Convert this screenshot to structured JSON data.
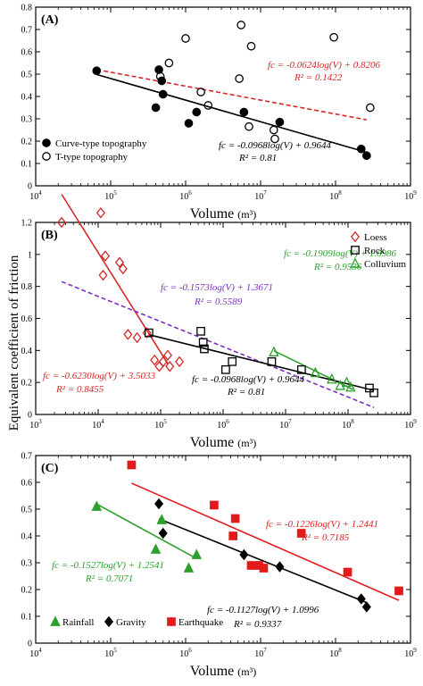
{
  "figure": {
    "ylabel": "Equivalent coefficient of friction",
    "xlabel_prefix": "Volume",
    "xlabel_unit": "(m³)"
  },
  "chart_data": [
    {
      "panel": "(A)",
      "type": "scatter",
      "x_scale": "log",
      "x_exp_range": [
        4,
        9
      ],
      "ylim": [
        0,
        0.8
      ],
      "y_ticks": [
        0,
        0.1,
        0.2,
        0.3,
        0.4,
        0.5,
        0.6,
        0.7,
        0.8
      ],
      "legend_position": "bottom-left",
      "series": [
        {
          "name": "Curve-type topography",
          "marker": "filled-circle",
          "color": "#000000",
          "points": [
            {
              "x": 65000,
              "y": 0.515
            },
            {
              "x": 400000,
              "y": 0.35
            },
            {
              "x": 440000,
              "y": 0.52
            },
            {
              "x": 480000,
              "y": 0.47
            },
            {
              "x": 500000,
              "y": 0.41
            },
            {
              "x": 1100000,
              "y": 0.28
            },
            {
              "x": 1400000,
              "y": 0.33
            },
            {
              "x": 6000000,
              "y": 0.33
            },
            {
              "x": 18000000,
              "y": 0.285
            },
            {
              "x": 220000000,
              "y": 0.165
            },
            {
              "x": 260000000,
              "y": 0.135
            }
          ]
        },
        {
          "name": "T-type topography",
          "marker": "open-circle",
          "color": "#000000",
          "points": [
            {
              "x": 460000,
              "y": 0.49
            },
            {
              "x": 600000,
              "y": 0.55
            },
            {
              "x": 1000000,
              "y": 0.66
            },
            {
              "x": 1600000,
              "y": 0.42
            },
            {
              "x": 2000000,
              "y": 0.36
            },
            {
              "x": 5200000,
              "y": 0.48
            },
            {
              "x": 5500000,
              "y": 0.72
            },
            {
              "x": 7500000,
              "y": 0.625
            },
            {
              "x": 7000000,
              "y": 0.265
            },
            {
              "x": 15000000,
              "y": 0.25
            },
            {
              "x": 15500000,
              "y": 0.21
            },
            {
              "x": 95000000,
              "y": 0.665
            },
            {
              "x": 290000000,
              "y": 0.35
            }
          ]
        }
      ],
      "fits": [
        {
          "label": "fc = -0.0624log(V) + 0.8206",
          "r2": "R² = 0.1422",
          "slope": -0.0624,
          "intercept": 0.8206,
          "x_from": 65000,
          "x_to": 260000000,
          "style": "dashed",
          "color": "#d62728"
        },
        {
          "label": "fc = -0.0968log(V) + 0.9644",
          "r2": "R² = 0.81",
          "slope": -0.0968,
          "intercept": 0.9644,
          "x_from": 65000,
          "x_to": 260000000,
          "style": "solid",
          "color": "#000000"
        }
      ]
    },
    {
      "panel": "(B)",
      "type": "scatter",
      "x_scale": "log",
      "x_exp_range": [
        3,
        9
      ],
      "ylim": [
        0,
        1.2
      ],
      "y_ticks": [
        0,
        0.2,
        0.4,
        0.6,
        0.8,
        1.0,
        1.2
      ],
      "legend_position": "top-right",
      "series": [
        {
          "name": "Loess",
          "marker": "open-diamond",
          "color": "#d62728",
          "points": [
            {
              "x": 2600,
              "y": 1.2
            },
            {
              "x": 11000,
              "y": 1.26
            },
            {
              "x": 13000,
              "y": 0.99
            },
            {
              "x": 12000,
              "y": 0.87
            },
            {
              "x": 22000,
              "y": 0.95
            },
            {
              "x": 25000,
              "y": 0.91
            },
            {
              "x": 30000,
              "y": 0.5
            },
            {
              "x": 42000,
              "y": 0.48
            },
            {
              "x": 60000,
              "y": 0.51
            },
            {
              "x": 80000,
              "y": 0.34
            },
            {
              "x": 95000,
              "y": 0.3
            },
            {
              "x": 110000,
              "y": 0.33
            },
            {
              "x": 130000,
              "y": 0.37
            },
            {
              "x": 140000,
              "y": 0.3
            },
            {
              "x": 200000,
              "y": 0.33
            }
          ]
        },
        {
          "name": "Rock",
          "marker": "open-square",
          "color": "#000000",
          "points": [
            {
              "x": 65000,
              "y": 0.51
            },
            {
              "x": 440000,
              "y": 0.52
            },
            {
              "x": 480000,
              "y": 0.45
            },
            {
              "x": 500000,
              "y": 0.41
            },
            {
              "x": 1100000,
              "y": 0.28
            },
            {
              "x": 1400000,
              "y": 0.33
            },
            {
              "x": 6000000,
              "y": 0.33
            },
            {
              "x": 18000000,
              "y": 0.28
            },
            {
              "x": 220000000,
              "y": 0.165
            },
            {
              "x": 260000000,
              "y": 0.135
            }
          ]
        },
        {
          "name": "Colluvium",
          "marker": "open-triangle",
          "color": "#2ca02c",
          "points": [
            {
              "x": 6500000,
              "y": 0.39
            },
            {
              "x": 30000000,
              "y": 0.26
            },
            {
              "x": 55000000,
              "y": 0.22
            },
            {
              "x": 75000000,
              "y": 0.18
            },
            {
              "x": 95000000,
              "y": 0.2
            },
            {
              "x": 110000000,
              "y": 0.17
            }
          ]
        }
      ],
      "fits": [
        {
          "label": "fc = -0.6230log(V) + 3.5033",
          "r2": "R² = 0.8455",
          "slope": -0.623,
          "intercept": 3.5033,
          "x_from": 2600,
          "x_to": 130000,
          "style": "solid",
          "color": "#d62728"
        },
        {
          "label": "fc = -0.1573log(V) + 1.3671",
          "r2": "R² = 0.5589",
          "slope": -0.1573,
          "intercept": 1.3671,
          "x_from": 2600,
          "x_to": 260000000,
          "style": "dashed",
          "color": "#7b2fbe"
        },
        {
          "label": "fc = -0.1909log(V) + 1.6986",
          "r2": "R² = 0.9536",
          "slope": -0.1909,
          "intercept": 1.6986,
          "x_from": 6500000,
          "x_to": 120000000,
          "style": "solid",
          "color": "#2ca02c"
        },
        {
          "label": "fc = -0.0968log(V) + 0.9644",
          "r2": "R² = 0.81",
          "slope": -0.0968,
          "intercept": 0.9644,
          "x_from": 65000,
          "x_to": 260000000,
          "style": "solid",
          "color": "#000000"
        }
      ]
    },
    {
      "panel": "(C)",
      "type": "scatter",
      "x_scale": "log",
      "x_exp_range": [
        4,
        9
      ],
      "ylim": [
        0,
        0.7
      ],
      "y_ticks": [
        0,
        0.1,
        0.2,
        0.3,
        0.4,
        0.5,
        0.6,
        0.7
      ],
      "legend_position": "bottom-left",
      "series": [
        {
          "name": "Rainfall",
          "marker": "filled-triangle",
          "color": "#2ca02c",
          "points": [
            {
              "x": 65000,
              "y": 0.51
            },
            {
              "x": 400000,
              "y": 0.35
            },
            {
              "x": 480000,
              "y": 0.46
            },
            {
              "x": 1100000,
              "y": 0.28
            },
            {
              "x": 1400000,
              "y": 0.33
            }
          ]
        },
        {
          "name": "Gravity",
          "marker": "filled-diamond",
          "color": "#000000",
          "points": [
            {
              "x": 440000,
              "y": 0.52
            },
            {
              "x": 500000,
              "y": 0.41
            },
            {
              "x": 6000000,
              "y": 0.33
            },
            {
              "x": 18000000,
              "y": 0.285
            },
            {
              "x": 220000000,
              "y": 0.165
            },
            {
              "x": 260000000,
              "y": 0.135
            }
          ]
        },
        {
          "name": "Earthquake",
          "marker": "filled-square",
          "color": "#e31a1c",
          "points": [
            {
              "x": 190000,
              "y": 0.665
            },
            {
              "x": 2400000,
              "y": 0.515
            },
            {
              "x": 4600000,
              "y": 0.465
            },
            {
              "x": 4300000,
              "y": 0.4
            },
            {
              "x": 7500000,
              "y": 0.29
            },
            {
              "x": 9500000,
              "y": 0.29
            },
            {
              "x": 11000000,
              "y": 0.28
            },
            {
              "x": 35000000,
              "y": 0.41
            },
            {
              "x": 145000000,
              "y": 0.265
            },
            {
              "x": 700000000,
              "y": 0.195
            }
          ]
        }
      ],
      "fits": [
        {
          "label": "fc = -0.1527log(V) + 1.2541",
          "r2": "R² = 0.7071",
          "slope": -0.1527,
          "intercept": 1.2541,
          "x_from": 65000,
          "x_to": 1400000,
          "style": "solid",
          "color": "#2ca02c"
        },
        {
          "label": "fc = -0.1127log(V) + 1.0996",
          "r2": "R² = 0.9337",
          "slope": -0.1127,
          "intercept": 1.0996,
          "x_from": 440000,
          "x_to": 260000000,
          "style": "solid",
          "color": "#000000"
        },
        {
          "label": "fc = -0.1226log(V) + 1.2441",
          "r2": "R² = 0.7185",
          "slope": -0.1226,
          "intercept": 1.2441,
          "x_from": 190000,
          "x_to": 700000000,
          "style": "solid",
          "color": "#e31a1c"
        }
      ]
    }
  ]
}
